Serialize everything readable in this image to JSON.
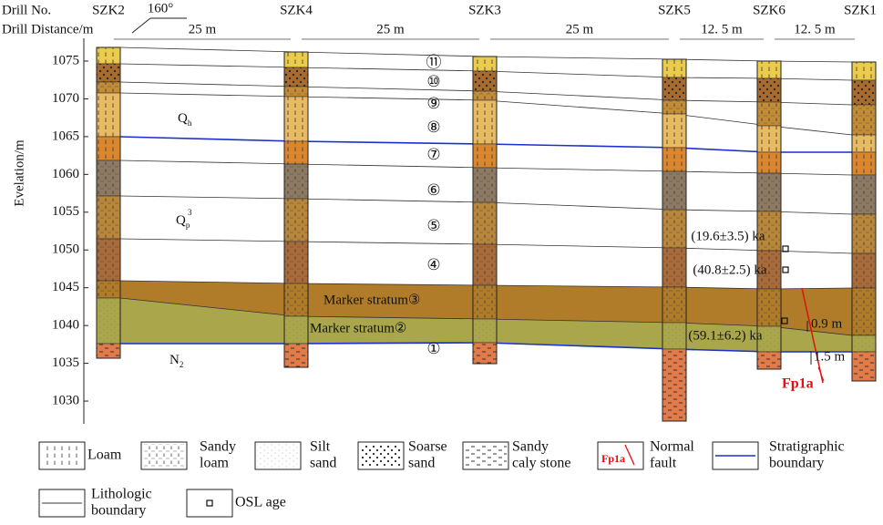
{
  "header": {
    "drill_no": "Drill No.",
    "drill_distance": "Drill Distance/m",
    "azimuth": "160°"
  },
  "drills": [
    "SZK2",
    "SZK4",
    "SZK3",
    "SZK5",
    "SZK6",
    "SZK1"
  ],
  "distances": [
    "25 m",
    "25 m",
    "25 m",
    "12. 5 m",
    "12. 5 m"
  ],
  "axis": {
    "label": "Evelation/m",
    "ticks": [
      1075,
      1070,
      1065,
      1060,
      1055,
      1050,
      1045,
      1040,
      1035,
      1030
    ]
  },
  "layers": [
    "⑪",
    "⑩",
    "⑨",
    "⑧",
    "⑦",
    "⑥",
    "⑤",
    "④",
    "①"
  ],
  "markers": [
    "Marker stratum③",
    "Marker stratum②"
  ],
  "strata": [
    {
      "base": "Q",
      "sub": "h"
    },
    {
      "base": "Q",
      "sub": "p",
      "sup": "3"
    },
    {
      "base": "N",
      "sub": "2"
    }
  ],
  "ages": [
    "(19.6±3.5) ka",
    "(40.8±2.5) ka",
    "(59.1±6.2) ka"
  ],
  "offsets": [
    "0.9 m",
    "1.5 m"
  ],
  "fault": "Fp1a",
  "legend": [
    {
      "label": [
        "Loam"
      ]
    },
    {
      "label": [
        "Sandy",
        "loam"
      ]
    },
    {
      "label": [
        "Silt",
        "sand"
      ]
    },
    {
      "label": [
        "Soarse",
        "sand"
      ]
    },
    {
      "label": [
        "Sandy",
        "caly stone"
      ]
    },
    {
      "label": [
        "Normal",
        "fault"
      ],
      "icon_text": "Fp1a"
    },
    {
      "label": [
        "Stratigraphic",
        "boundary"
      ]
    },
    {
      "label": [
        "Lithologic",
        "boundary"
      ]
    },
    {
      "label": [
        "OSL age"
      ]
    }
  ]
}
